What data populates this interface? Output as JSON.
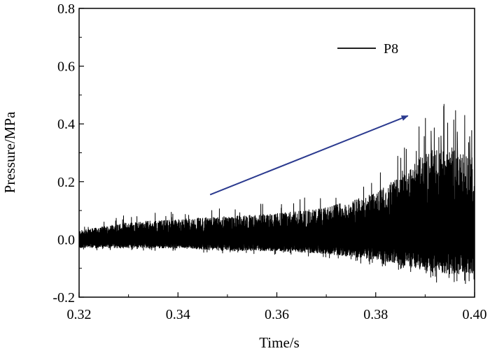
{
  "chart_data": {
    "type": "line",
    "title": "",
    "xlabel": "Time/s",
    "ylabel": "Pressure/MPa",
    "xlim": [
      0.32,
      0.4
    ],
    "ylim": [
      -0.2,
      0.8
    ],
    "xticks": [
      "0.32",
      "0.34",
      "0.36",
      "0.38",
      "0.40"
    ],
    "yticks": [
      "-0.2",
      "0.0",
      "0.2",
      "0.4",
      "0.6",
      "0.8"
    ],
    "grid": false,
    "legend": {
      "position": "top-right",
      "entries": [
        "P8"
      ]
    },
    "series": [
      {
        "name": "P8",
        "color": "#000000",
        "description_points": {
          "x": [
            0.32,
            0.33,
            0.34,
            0.35,
            0.36,
            0.37,
            0.38,
            0.385,
            0.39,
            0.395,
            0.4
          ],
          "upper_envelope": [
            0.03,
            0.06,
            0.07,
            0.08,
            0.09,
            0.11,
            0.16,
            0.22,
            0.3,
            0.33,
            0.28
          ],
          "lower_envelope": [
            -0.03,
            -0.03,
            -0.03,
            -0.04,
            -0.04,
            -0.05,
            -0.07,
            -0.09,
            -0.11,
            -0.12,
            -0.12
          ],
          "peaks": [
            {
              "x": 0.3854,
              "y": 0.237
            },
            {
              "x": 0.3912,
              "y": 0.375
            },
            {
              "x": 0.3932,
              "y": 0.358
            },
            {
              "x": 0.3965,
              "y": 0.372
            },
            {
              "x": 0.399,
              "y": 0.356
            }
          ]
        }
      }
    ],
    "annotations": [
      {
        "type": "arrow",
        "color": "#2b3a8f",
        "from": [
          0.3465,
          0.155
        ],
        "to": [
          0.3865,
          0.428
        ]
      }
    ]
  }
}
